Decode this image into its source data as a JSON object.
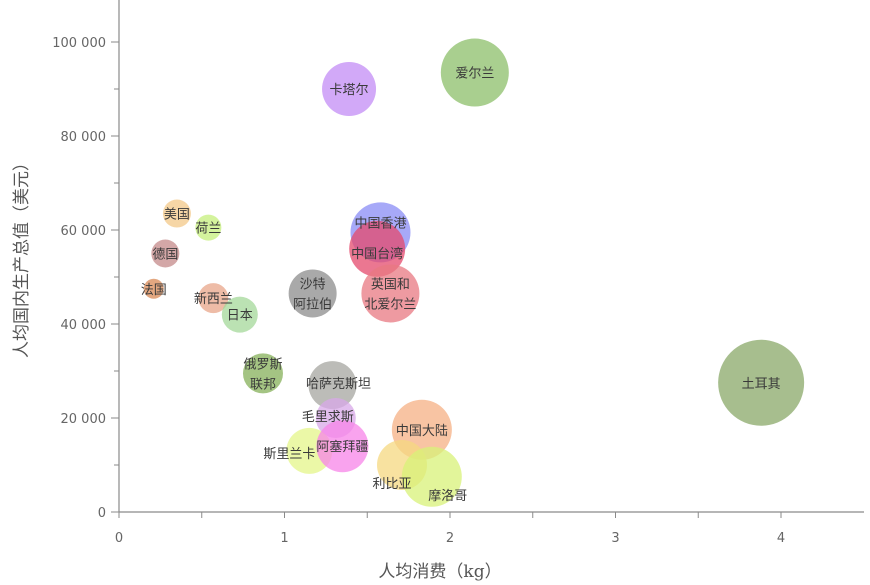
{
  "chart_data": {
    "type": "scatter",
    "variant": "bubble",
    "xlabel": "人均消费（kg）",
    "ylabel": "人均国内生产总值（美元）",
    "xlim": [
      0,
      4.5
    ],
    "ylim": [
      0,
      110000
    ],
    "x_ticks": [
      0,
      1,
      2,
      3,
      4
    ],
    "x_tick_labels": [
      "0",
      "1",
      "2",
      "3",
      "4"
    ],
    "y_ticks": [
      0,
      20000,
      40000,
      60000,
      80000,
      100000
    ],
    "y_tick_labels": [
      "0",
      "20 000",
      "40 000",
      "60 000",
      "80 000",
      "100 000"
    ],
    "grid": false,
    "points": [
      {
        "label": "爱尔兰",
        "x": 2.15,
        "y": 93500,
        "size": 34,
        "color": "#8cbf6a"
      },
      {
        "label": "卡塔尔",
        "x": 1.39,
        "y": 90000,
        "size": 27,
        "color": "#c38cf5"
      },
      {
        "label": "美国",
        "x": 0.35,
        "y": 63500,
        "size": 14,
        "color": "#f3c888"
      },
      {
        "label": "荷兰",
        "x": 0.54,
        "y": 60500,
        "size": 13,
        "color": "#c6ef7c"
      },
      {
        "label": "德国",
        "x": 0.28,
        "y": 55000,
        "size": 14,
        "color": "#c48a8a"
      },
      {
        "label": "法国",
        "x": 0.21,
        "y": 47500,
        "size": 10,
        "color": "#d98a55"
      },
      {
        "label": "新西兰",
        "x": 0.57,
        "y": 45500,
        "size": 15,
        "color": "#e8a58a"
      },
      {
        "label": "日本",
        "x": 0.73,
        "y": 42000,
        "size": 18,
        "color": "#a4d89a"
      },
      {
        "label": "中国香港",
        "x": 1.58,
        "y": 59500,
        "size": 30,
        "color": "#8a8cf5"
      },
      {
        "label": "中国台湾",
        "x": 1.56,
        "y": 56000,
        "size": 28,
        "color": "#e44a6c"
      },
      {
        "label": "沙特阿拉伯",
        "x": 1.17,
        "y": 46500,
        "size": 24,
        "color": "#8c8c8c"
      },
      {
        "label": "英国和北爱尔兰",
        "x": 1.64,
        "y": 46500,
        "size": 29,
        "color": "#e87882"
      },
      {
        "label": "俄罗斯联邦",
        "x": 0.87,
        "y": 29500,
        "size": 20,
        "color": "#86b05a"
      },
      {
        "label": "哈萨克斯坦",
        "x": 1.29,
        "y": 27000,
        "size": 24,
        "color": "#a6a6a0"
      },
      {
        "label": "土耳其",
        "x": 3.88,
        "y": 27500,
        "size": 43,
        "color": "#8aa868"
      },
      {
        "label": "毛里求斯",
        "x": 1.31,
        "y": 20000,
        "size": 20,
        "color": "#d8a8e8"
      },
      {
        "label": "中国大陆",
        "x": 1.83,
        "y": 17500,
        "size": 30,
        "color": "#f5b084"
      },
      {
        "label": "斯里兰卡",
        "x": 1.15,
        "y": 13000,
        "size": 23,
        "color": "#e4f58a"
      },
      {
        "label": "阿塞拜疆",
        "x": 1.35,
        "y": 14000,
        "size": 26,
        "color": "#f784e8"
      },
      {
        "label": "利比亚",
        "x": 1.71,
        "y": 10000,
        "size": 25,
        "color": "#f5d880"
      },
      {
        "label": "摩洛哥",
        "x": 1.89,
        "y": 7500,
        "size": 30,
        "color": "#d8f278"
      }
    ]
  }
}
